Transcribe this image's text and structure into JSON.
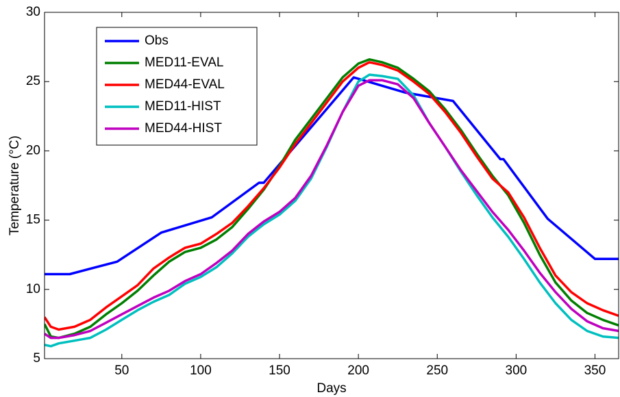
{
  "chart_data": {
    "type": "line",
    "x_label": "Days",
    "y_label": "Temperature (°C)",
    "xlim": [
      1,
      365
    ],
    "ylim": [
      5,
      30
    ],
    "xticks": [
      50,
      100,
      150,
      200,
      250,
      300,
      350
    ],
    "yticks": [
      5,
      10,
      15,
      20,
      25,
      30
    ],
    "legend": "upper left",
    "series": [
      {
        "name": "Obs",
        "color": "#0000ff",
        "x": [
          1,
          17,
          47,
          75,
          107,
          137,
          140,
          170,
          197,
          230,
          260,
          290,
          292,
          320,
          350,
          365
        ],
        "values": [
          11.1,
          11.1,
          12,
          14.1,
          15.2,
          17.7,
          17.7,
          21.7,
          25.3,
          24.2,
          23.6,
          19.4,
          19.4,
          15.1,
          12.2,
          12.2
        ]
      },
      {
        "name": "MED11-EVAL",
        "color": "#007f00",
        "x": [
          1,
          5,
          10,
          20,
          30,
          40,
          50,
          60,
          70,
          80,
          90,
          100,
          110,
          120,
          130,
          140,
          150,
          160,
          170,
          180,
          190,
          200,
          207,
          215,
          225,
          235,
          245,
          255,
          265,
          275,
          285,
          295,
          305,
          315,
          325,
          335,
          345,
          355,
          365
        ],
        "values": [
          7.5,
          6.6,
          6.5,
          6.8,
          7.3,
          8.2,
          9.0,
          9.9,
          11.0,
          12.0,
          12.7,
          13.0,
          13.6,
          14.5,
          15.8,
          17.2,
          18.9,
          20.8,
          22.3,
          23.8,
          25.3,
          26.3,
          26.6,
          26.4,
          26.0,
          25.2,
          24.3,
          23.0,
          21.5,
          19.8,
          18.2,
          16.8,
          14.8,
          12.5,
          10.5,
          9.2,
          8.3,
          7.8,
          7.4
        ]
      },
      {
        "name": "MED44-EVAL",
        "color": "#ff0000",
        "x": [
          1,
          5,
          10,
          20,
          30,
          40,
          50,
          60,
          70,
          80,
          90,
          100,
          110,
          120,
          130,
          140,
          150,
          160,
          170,
          180,
          190,
          200,
          207,
          215,
          225,
          235,
          245,
          255,
          265,
          275,
          285,
          295,
          305,
          315,
          325,
          335,
          345,
          355,
          365
        ],
        "values": [
          8.0,
          7.3,
          7.1,
          7.3,
          7.8,
          8.7,
          9.5,
          10.3,
          11.5,
          12.3,
          13.0,
          13.3,
          14.0,
          14.8,
          16.0,
          17.3,
          18.8,
          20.5,
          22.0,
          23.5,
          25.0,
          26.0,
          26.4,
          26.2,
          25.8,
          25.0,
          24.1,
          22.8,
          21.3,
          19.6,
          18.0,
          17.0,
          15.2,
          13.0,
          11.0,
          9.8,
          9.0,
          8.5,
          8.1
        ]
      },
      {
        "name": "MED11-HIST",
        "color": "#00bfbf",
        "x": [
          1,
          5,
          10,
          20,
          30,
          40,
          50,
          60,
          70,
          80,
          90,
          100,
          110,
          120,
          130,
          140,
          150,
          160,
          170,
          180,
          190,
          200,
          207,
          215,
          225,
          235,
          245,
          255,
          265,
          275,
          285,
          295,
          305,
          315,
          325,
          335,
          345,
          355,
          365
        ],
        "values": [
          6.0,
          5.9,
          6.1,
          6.3,
          6.5,
          7.1,
          7.8,
          8.5,
          9.1,
          9.6,
          10.4,
          10.9,
          11.6,
          12.6,
          13.8,
          14.7,
          15.4,
          16.4,
          18.0,
          20.3,
          22.8,
          25.0,
          25.5,
          25.4,
          25.2,
          24.0,
          22.0,
          20.3,
          18.5,
          16.8,
          15.2,
          13.8,
          12.2,
          10.5,
          9.0,
          7.8,
          7.0,
          6.6,
          6.5
        ]
      },
      {
        "name": "MED44-HIST",
        "color": "#bf00bf",
        "x": [
          1,
          5,
          10,
          20,
          30,
          40,
          50,
          60,
          70,
          80,
          90,
          100,
          110,
          120,
          130,
          140,
          150,
          160,
          170,
          180,
          190,
          200,
          207,
          215,
          225,
          235,
          245,
          255,
          265,
          275,
          285,
          295,
          305,
          315,
          325,
          335,
          345,
          355,
          365
        ],
        "values": [
          6.8,
          6.5,
          6.5,
          6.7,
          7.0,
          7.6,
          8.2,
          8.8,
          9.4,
          9.9,
          10.6,
          11.1,
          11.9,
          12.8,
          14.0,
          14.9,
          15.6,
          16.6,
          18.2,
          20.4,
          22.8,
          24.7,
          25.1,
          25.1,
          24.8,
          23.8,
          22.0,
          20.3,
          18.6,
          17.1,
          15.6,
          14.3,
          12.8,
          11.2,
          9.8,
          8.6,
          7.7,
          7.2,
          7.0
        ]
      }
    ]
  }
}
